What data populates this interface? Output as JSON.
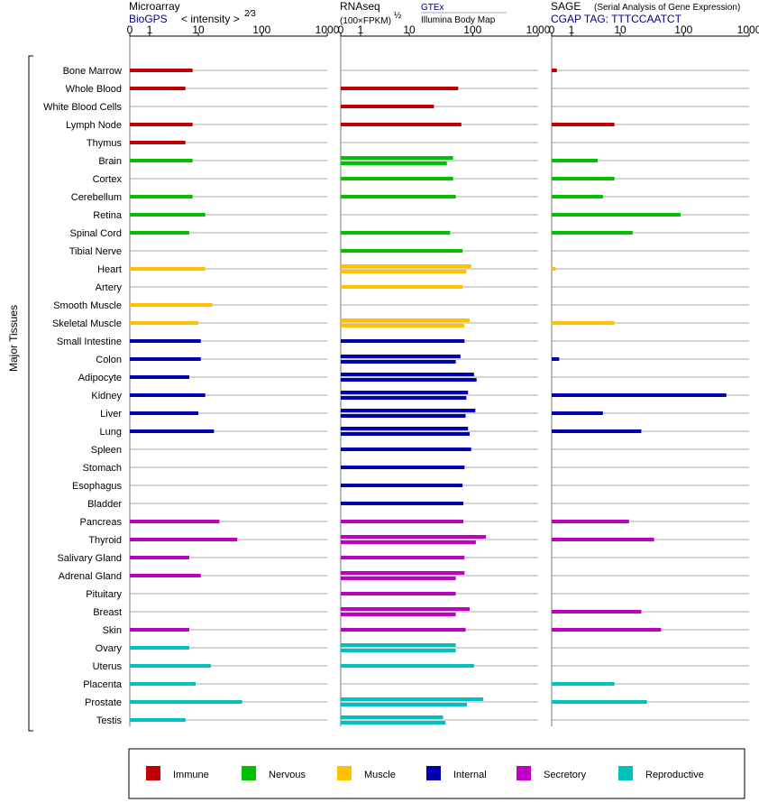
{
  "chart_data": {
    "type": "bar",
    "group_label": "Major Tissues",
    "categories": [
      "Bone Marrow",
      "Whole Blood",
      "White Blood Cells",
      "Lymph Node",
      "Thymus",
      "Brain",
      "Cortex",
      "Cerebellum",
      "Retina",
      "Spinal Cord",
      "Tibial Nerve",
      "Heart",
      "Artery",
      "Smooth Muscle",
      "Skeletal Muscle",
      "Small Intestine",
      "Colon",
      "Adipocyte",
      "Kidney",
      "Liver",
      "Lung",
      "Spleen",
      "Stomach",
      "Esophagus",
      "Bladder",
      "Pancreas",
      "Thyroid",
      "Salivary Gland",
      "Adrenal Gland",
      "Pituitary",
      "Breast",
      "Skin",
      "Ovary",
      "Uterus",
      "Placenta",
      "Prostate",
      "Testis"
    ],
    "category_group": [
      "Immune",
      "Immune",
      "Immune",
      "Immune",
      "Immune",
      "Nervous",
      "Nervous",
      "Nervous",
      "Nervous",
      "Nervous",
      "Nervous",
      "Muscle",
      "Muscle",
      "Muscle",
      "Muscle",
      "Internal",
      "Internal",
      "Internal",
      "Internal",
      "Internal",
      "Internal",
      "Internal",
      "Internal",
      "Internal",
      "Internal",
      "Secretory",
      "Secretory",
      "Secretory",
      "Secretory",
      "Secretory",
      "Secretory",
      "Secretory",
      "Reproductive",
      "Reproductive",
      "Reproductive",
      "Reproductive",
      "Reproductive"
    ],
    "groups": [
      {
        "name": "Immune",
        "color": "#c00000"
      },
      {
        "name": "Nervous",
        "color": "#00c000"
      },
      {
        "name": "Muscle",
        "color": "#ffc000"
      },
      {
        "name": "Internal",
        "color": "#0000b0"
      },
      {
        "name": "Secretory",
        "color": "#c000c0"
      },
      {
        "name": "Reproductive",
        "color": "#00c0c0"
      }
    ],
    "axis_ticks": [
      "0",
      "1",
      "10",
      "100",
      "1000"
    ],
    "xlim": [
      0,
      1000
    ],
    "panels": [
      {
        "key": "microarray",
        "title": "Microarray",
        "subtitle": "BioGPS",
        "scale_label": "< intensity >",
        "scale_exponent": "2⁄3",
        "values": [
          [
            8
          ],
          [
            6
          ],
          [
            null
          ],
          [
            8
          ],
          [
            6
          ],
          [
            8
          ],
          [
            null
          ],
          [
            8
          ],
          [
            13
          ],
          [
            7
          ],
          [
            null
          ],
          [
            13
          ],
          [
            null
          ],
          [
            17
          ],
          [
            10
          ],
          [
            11
          ],
          [
            11
          ],
          [
            7
          ],
          [
            13
          ],
          [
            10
          ],
          [
            18
          ],
          [
            null
          ],
          [
            null
          ],
          [
            null
          ],
          [
            null
          ],
          [
            22
          ],
          [
            42
          ],
          [
            7
          ],
          [
            11
          ],
          [
            null
          ],
          [
            null
          ],
          [
            7
          ],
          [
            7
          ],
          [
            16
          ],
          [
            9
          ],
          [
            50
          ],
          [
            6
          ]
        ]
      },
      {
        "key": "rnaseq",
        "title": "RNAseq",
        "subtitle": "(100×FPKM)",
        "subtitle_exponent": "½",
        "sources": [
          "GTEx",
          "Illumina Body Map"
        ],
        "values": [
          [
            null
          ],
          [
            60
          ],
          [
            25
          ],
          [
            67
          ],
          [
            null
          ],
          [
            50,
            40
          ],
          [
            50
          ],
          [
            55
          ],
          [
            null
          ],
          [
            45
          ],
          [
            70
          ],
          [
            95,
            80
          ],
          [
            70
          ],
          [
            null
          ],
          [
            90,
            75
          ],
          [
            75
          ],
          [
            65,
            55
          ],
          [
            105,
            115
          ],
          [
            85,
            80
          ],
          [
            110,
            78
          ],
          [
            85,
            90
          ],
          [
            95
          ],
          [
            75
          ],
          [
            70
          ],
          [
            72
          ],
          [
            72
          ],
          [
            160,
            112
          ],
          [
            75
          ],
          [
            75,
            55
          ],
          [
            55
          ],
          [
            90,
            55
          ],
          [
            78
          ],
          [
            55,
            55
          ],
          [
            105
          ],
          [
            null
          ],
          [
            145,
            82
          ],
          [
            35,
            38
          ]
        ]
      },
      {
        "key": "sage",
        "title": "SAGE",
        "subtitle_note": "(Serial Analysis of Gene Expression)",
        "tag_label": "CGAP TAG: TTTCCAATCT",
        "values": [
          [
            0.2
          ],
          [
            null
          ],
          [
            null
          ],
          [
            8
          ],
          [
            null
          ],
          [
            4
          ],
          [
            8
          ],
          [
            5
          ],
          [
            90
          ],
          [
            16
          ],
          [
            null
          ],
          [
            0.15
          ],
          [
            null
          ],
          [
            null
          ],
          [
            8
          ],
          [
            null
          ],
          [
            0.3
          ],
          [
            null
          ],
          [
            450
          ],
          [
            5
          ],
          [
            22
          ],
          [
            null
          ],
          [
            null
          ],
          [
            null
          ],
          [
            null
          ],
          [
            14
          ],
          [
            35
          ],
          [
            null
          ],
          [
            null
          ],
          [
            null
          ],
          [
            22
          ],
          [
            45
          ],
          [
            null
          ],
          [
            null
          ],
          [
            8
          ],
          [
            27
          ],
          [
            null
          ]
        ]
      }
    ]
  }
}
